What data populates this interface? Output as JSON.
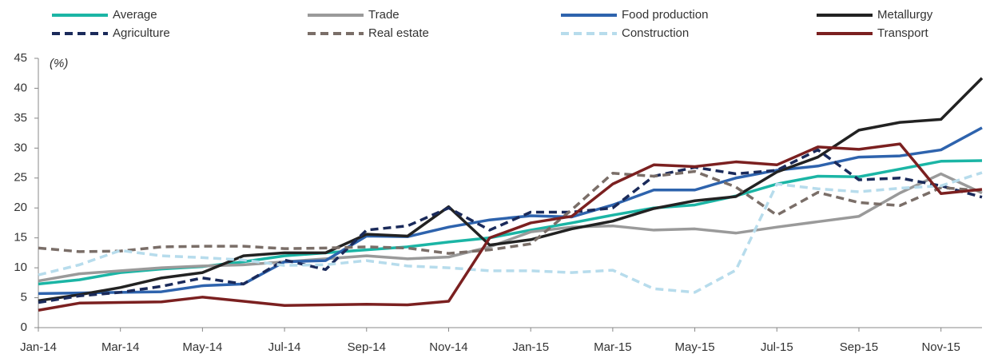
{
  "chart_data": {
    "type": "line",
    "annotation": "(%)",
    "categories": [
      "Jan-14",
      null,
      "Mar-14",
      null,
      "May-14",
      null,
      "Jul-14",
      null,
      "Sep-14",
      null,
      "Nov-14",
      null,
      "Jan-15",
      null,
      "Mar-15",
      null,
      "May-15",
      null,
      "Jul-15",
      null,
      "Sep-15",
      null,
      "Nov-15",
      null
    ],
    "ylim": [
      0,
      45
    ],
    "yticks": [
      0,
      5,
      10,
      15,
      20,
      25,
      30,
      35,
      40,
      45
    ],
    "grid": false,
    "legend": "top",
    "series": [
      {
        "name": "Average",
        "color": "#1bb5a5",
        "dashed": false,
        "values": [
          7.3,
          8,
          9.2,
          9.8,
          10.2,
          11,
          12,
          12.5,
          13,
          13.5,
          14.3,
          15,
          16.3,
          17.5,
          18.8,
          20,
          20.5,
          22,
          24,
          25.3,
          25.2,
          26.5,
          27.8,
          27.9
        ]
      },
      {
        "name": "Trade",
        "color": "#9a9a9a",
        "dashed": false,
        "values": [
          7.8,
          9,
          9.5,
          10,
          10.3,
          10.5,
          11,
          11.5,
          12,
          11.5,
          11.8,
          13.5,
          16,
          16.8,
          17,
          16.3,
          16.5,
          15.8,
          16.8,
          17.7,
          18.6,
          22.5,
          25.7,
          22.5
        ]
      },
      {
        "name": "Food production",
        "color": "#2e63ad",
        "dashed": false,
        "values": [
          5.7,
          5.8,
          5.9,
          6,
          7,
          7.3,
          11,
          11.2,
          15.3,
          15.2,
          16.8,
          18,
          18.7,
          18.5,
          20.5,
          23,
          23,
          25,
          26.3,
          27,
          28.5,
          28.7,
          29.7,
          33.4
        ]
      },
      {
        "name": "Metallurgy",
        "color": "#222222",
        "dashed": false,
        "values": [
          4.5,
          5.5,
          6.7,
          8.3,
          9.2,
          12,
          12.5,
          12.5,
          15.6,
          15.3,
          20.2,
          13.8,
          14.7,
          16.5,
          17.8,
          19.9,
          21.2,
          21.9,
          26,
          28.5,
          33,
          34.3,
          34.8,
          41.7
        ]
      },
      {
        "name": "Agriculture",
        "color": "#1a2a5a",
        "dashed": true,
        "values": [
          4.2,
          5.3,
          5.9,
          6.9,
          8.3,
          7.3,
          11.3,
          9.7,
          16.3,
          17,
          20,
          16.3,
          19.3,
          19.3,
          20,
          25.3,
          26.8,
          25.7,
          26.3,
          29.7,
          24.7,
          25,
          23.7,
          21.8
        ]
      },
      {
        "name": "Real estate",
        "color": "#7a6e68",
        "dashed": true,
        "values": [
          13.3,
          12.7,
          12.8,
          13.5,
          13.6,
          13.6,
          13.2,
          13.3,
          13.5,
          13.3,
          12.4,
          13,
          14,
          19.7,
          25.8,
          25.3,
          26.1,
          23.5,
          18.8,
          22.6,
          20.9,
          20.4,
          23.4,
          22.9
        ]
      },
      {
        "name": "Construction",
        "color": "#b7dcec",
        "dashed": true,
        "values": [
          8.8,
          10.5,
          12.9,
          12,
          11.7,
          11.3,
          10.4,
          10.5,
          11.2,
          10.3,
          10,
          9.5,
          9.5,
          9.2,
          9.6,
          6.5,
          5.9,
          9.6,
          24,
          23.2,
          22.7,
          23.3,
          23.7,
          25.9
        ]
      },
      {
        "name": "Transport",
        "color": "#7b2020",
        "dashed": false,
        "values": [
          2.9,
          4.1,
          4.2,
          4.3,
          5.1,
          4.4,
          3.7,
          3.8,
          3.9,
          3.8,
          4.4,
          15,
          17.5,
          18.6,
          24,
          27.2,
          26.9,
          27.7,
          27.2,
          30.2,
          29.8,
          30.7,
          22.4,
          23.1
        ]
      }
    ]
  }
}
